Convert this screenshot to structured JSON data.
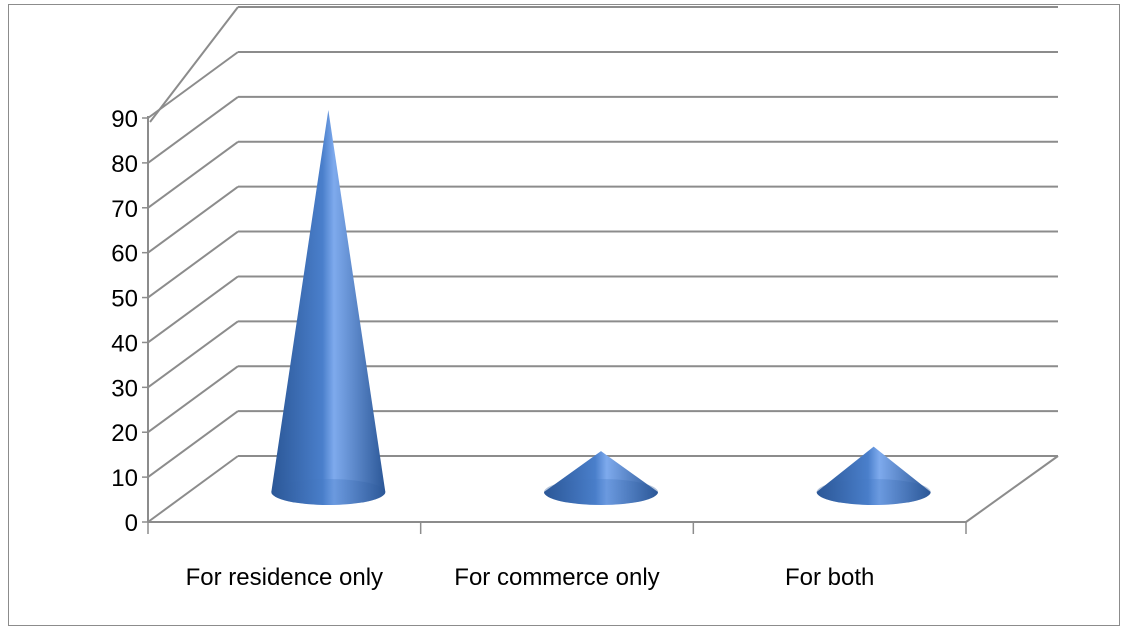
{
  "chart_data": {
    "type": "bar",
    "style": "3d-cone",
    "title": "",
    "xlabel": "",
    "ylabel": "",
    "categories": [
      "For residence only",
      "For commerce only",
      "For both"
    ],
    "values": [
      86,
      10,
      11
    ],
    "ylim": [
      0,
      90
    ],
    "yticks": [
      "0",
      "10",
      "20",
      "30",
      "40",
      "50",
      "60",
      "70",
      "80",
      "90"
    ],
    "grid": true,
    "legend": "none",
    "colors": {
      "cone_dark": "#2b5797",
      "cone_mid": "#4a7fcb",
      "cone_light": "#7eaaed",
      "gridline": "#8c8c8c",
      "frame": "#8c8c8c"
    }
  }
}
